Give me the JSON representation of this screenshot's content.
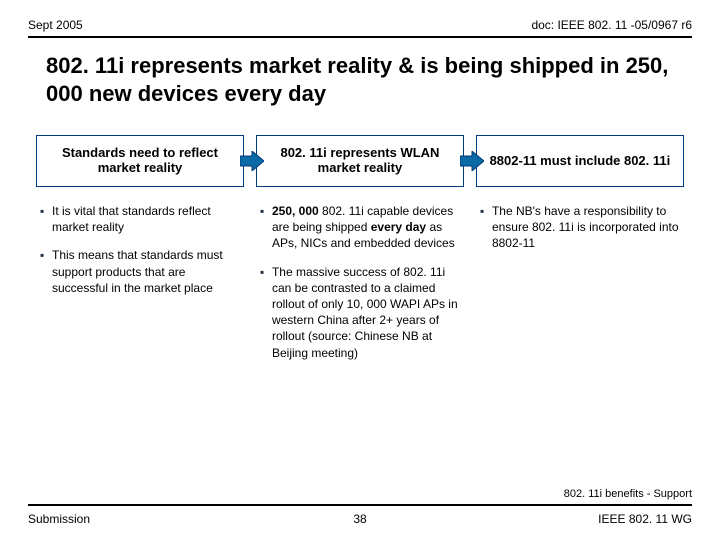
{
  "header": {
    "left": "Sept 2005",
    "right": "doc: IEEE 802. 11 -05/0967 r6"
  },
  "title": "802. 11i represents market reality & is being shipped in 250, 000 new devices every day",
  "boxes": [
    "Standards need to reflect market reality",
    "802. 11i represents WLAN market reality",
    "8802-11 must include 802. 11i"
  ],
  "col1": [
    "It is vital that standards reflect market reality",
    "This means that standards must support products that are successful in the market place"
  ],
  "col2": [
    "<b>250, 000</b> 802. 11i capable devices are being shipped <b>every day</b> as APs, NICs and embedded devices",
    "The massive success of 802. 11i can be contrasted to a claimed rollout of only 10, 000 WAPI APs in western China after 2+ years of rollout (source: Chinese NB at Beijing meeting)"
  ],
  "col3": [
    "The NB's have a responsibility to ensure 802. 11i is incorporated into 8802-11"
  ],
  "tag": "802. 11i benefits - Support",
  "footer": {
    "left": "Submission",
    "page": "38",
    "right": "IEEE 802. 11 WG"
  },
  "colors": {
    "box_border": "#003b7a",
    "arrow_fill": "#0a6aa6",
    "arrow_stroke": "#003b7a"
  }
}
